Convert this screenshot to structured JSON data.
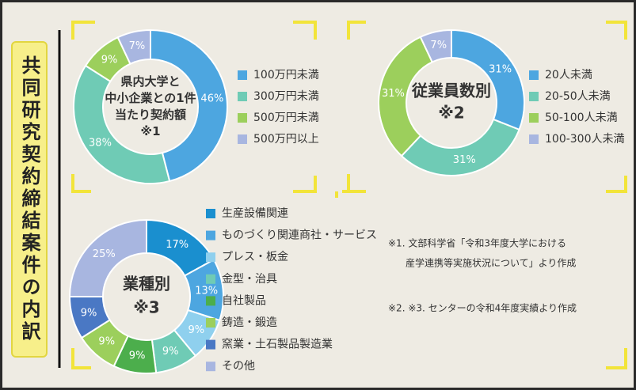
{
  "title": "共同研究契約締結案件の内訳",
  "chart_data": [
    {
      "type": "donut",
      "center_label": [
        "県内大学と",
        "中小企業との1件",
        "当たり契約額",
        "※1"
      ],
      "categories": [
        "100万円未満",
        "300万円未満",
        "500万円未満",
        "500万円以上"
      ],
      "values": [
        46,
        38,
        9,
        7
      ],
      "value_labels": [
        "46%",
        "38%",
        "9%",
        "7%"
      ],
      "colors": [
        "#4da6e0",
        "#6fcbb5",
        "#9ccf5c",
        "#a8b6e0"
      ]
    },
    {
      "type": "donut",
      "center_label": [
        "従業員数別",
        "※2"
      ],
      "categories": [
        "20人未満",
        "20-50人未満",
        "50-100人未満",
        "100-300人未満"
      ],
      "values": [
        31,
        31,
        31,
        7
      ],
      "value_labels": [
        "31%",
        "31%",
        "31%",
        "7%"
      ],
      "colors": [
        "#4da6e0",
        "#6fcbb5",
        "#9ccf5c",
        "#a8b6e0"
      ]
    },
    {
      "type": "donut",
      "center_label": [
        "業種別",
        "※3"
      ],
      "categories": [
        "生産設備関連",
        "ものづくり関連商社・サービス",
        "プレス・板金",
        "金型・治具",
        "自社製品",
        "鋳造・鍛造",
        "窯業・土石製品製造業",
        "その他"
      ],
      "values": [
        17,
        13,
        9,
        9,
        9,
        9,
        9,
        25
      ],
      "value_labels": [
        "17%",
        "13%",
        "9%",
        "9%",
        "9%",
        "9%",
        "9%",
        "25%"
      ],
      "colors": [
        "#1a8fcf",
        "#4da6e0",
        "#8fd0ee",
        "#6fcbb5",
        "#4cae4c",
        "#9ccf5c",
        "#4a78c4",
        "#a8b6e0"
      ]
    }
  ],
  "notes": [
    "※1. 文部科学省「令和3年度大学における",
    "産学連携等実施状況について」より作成",
    "※2. ※3. センターの令和4年度実績より作成"
  ]
}
